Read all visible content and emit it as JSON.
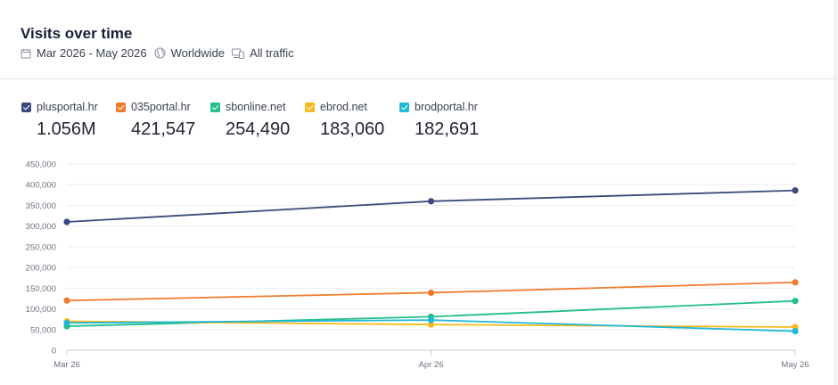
{
  "header": {
    "title": "Visits over time",
    "date_range": "Mar 2026 - May 2026",
    "region": "Worldwide",
    "traffic": "All traffic"
  },
  "legend": [
    {
      "name": "plusportal.hr",
      "total": "1.056M",
      "color": "#3b4a7e"
    },
    {
      "name": "035portal.hr",
      "total": "421,547",
      "color": "#f07a2b"
    },
    {
      "name": "sbonline.net",
      "total": "254,490",
      "color": "#23bf87"
    },
    {
      "name": "ebrod.net",
      "total": "183,060",
      "color": "#f6b91c"
    },
    {
      "name": "brodportal.hr",
      "total": "182,691",
      "color": "#1fb8d6"
    }
  ],
  "chart_data": {
    "type": "line",
    "x": [
      "Mar 26",
      "Apr 26",
      "May 26"
    ],
    "yticks": [
      "450,000",
      "400,000",
      "350,000",
      "300,000",
      "250,000",
      "200,000",
      "150,000",
      "100,000",
      "50,000",
      "0"
    ],
    "ylim": [
      0,
      450000
    ],
    "grid": true,
    "legend_position": "top",
    "series": [
      {
        "name": "plusportal.hr",
        "color": "#3b4a7e",
        "values": [
          310000,
          360000,
          386000
        ]
      },
      {
        "name": "035portal.hr",
        "color": "#f07a2b",
        "values": [
          120000,
          139000,
          164000
        ]
      },
      {
        "name": "sbonline.net",
        "color": "#23bf87",
        "values": [
          58000,
          81000,
          119000
        ]
      },
      {
        "name": "ebrod.net",
        "color": "#f6b91c",
        "values": [
          70000,
          62000,
          56000
        ]
      },
      {
        "name": "brodportal.hr",
        "color": "#1fb8d6",
        "values": [
          66000,
          73000,
          46000
        ]
      }
    ]
  }
}
